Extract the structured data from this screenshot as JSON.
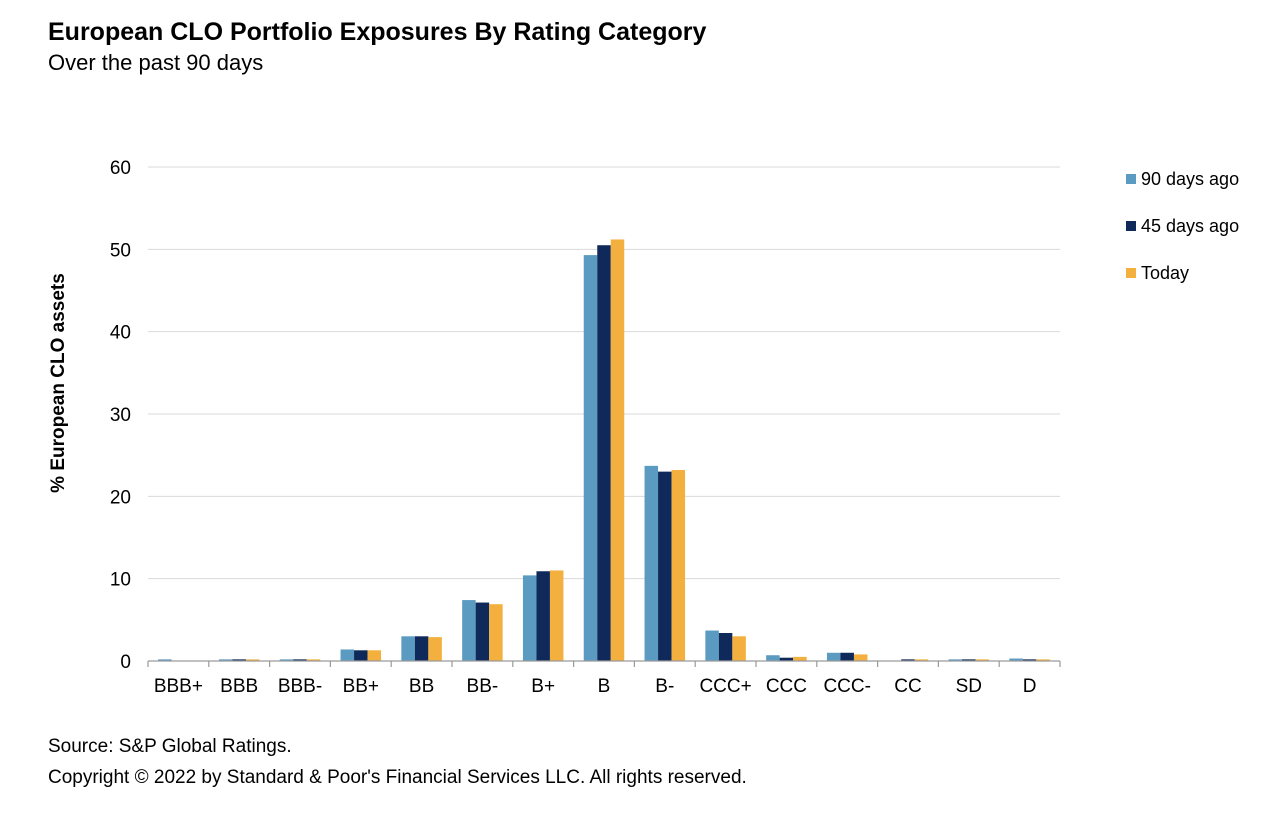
{
  "chart_data": {
    "type": "bar",
    "title": "European CLO Portfolio Exposures By Rating Category",
    "subtitle": "Over the past 90 days",
    "ylabel": "% European CLO assets",
    "xlabel": "",
    "ylim": [
      0,
      60
    ],
    "yticks": [
      0,
      10,
      20,
      30,
      40,
      50,
      60
    ],
    "grid": true,
    "legend_position": "top-right",
    "categories": [
      "BBB+",
      "BBB",
      "BBB-",
      "BB+",
      "BB",
      "BB-",
      "B+",
      "B",
      "B-",
      "CCC+",
      "CCC",
      "CCC-",
      "CC",
      "SD",
      "D"
    ],
    "series": [
      {
        "name": "90 days ago",
        "color": "#5b9bc2",
        "values": [
          0.2,
          0.2,
          0.2,
          1.4,
          3.0,
          7.4,
          10.4,
          49.3,
          23.7,
          3.7,
          0.7,
          1.0,
          0.0,
          0.2,
          0.3
        ]
      },
      {
        "name": "45 days ago",
        "color": "#0f2a5a",
        "values": [
          0.0,
          0.2,
          0.2,
          1.3,
          3.0,
          7.1,
          10.9,
          50.5,
          23.0,
          3.4,
          0.4,
          1.0,
          0.2,
          0.2,
          0.2
        ]
      },
      {
        "name": "Today",
        "color": "#f4b03e",
        "values": [
          0.0,
          0.2,
          0.2,
          1.3,
          2.9,
          6.9,
          11.0,
          51.2,
          23.2,
          3.0,
          0.5,
          0.8,
          0.2,
          0.2,
          0.2
        ]
      }
    ]
  },
  "footer": {
    "source": "Source: S&P Global Ratings.",
    "copyright": "Copyright © 2022 by Standard & Poor's Financial Services LLC. All rights reserved."
  }
}
